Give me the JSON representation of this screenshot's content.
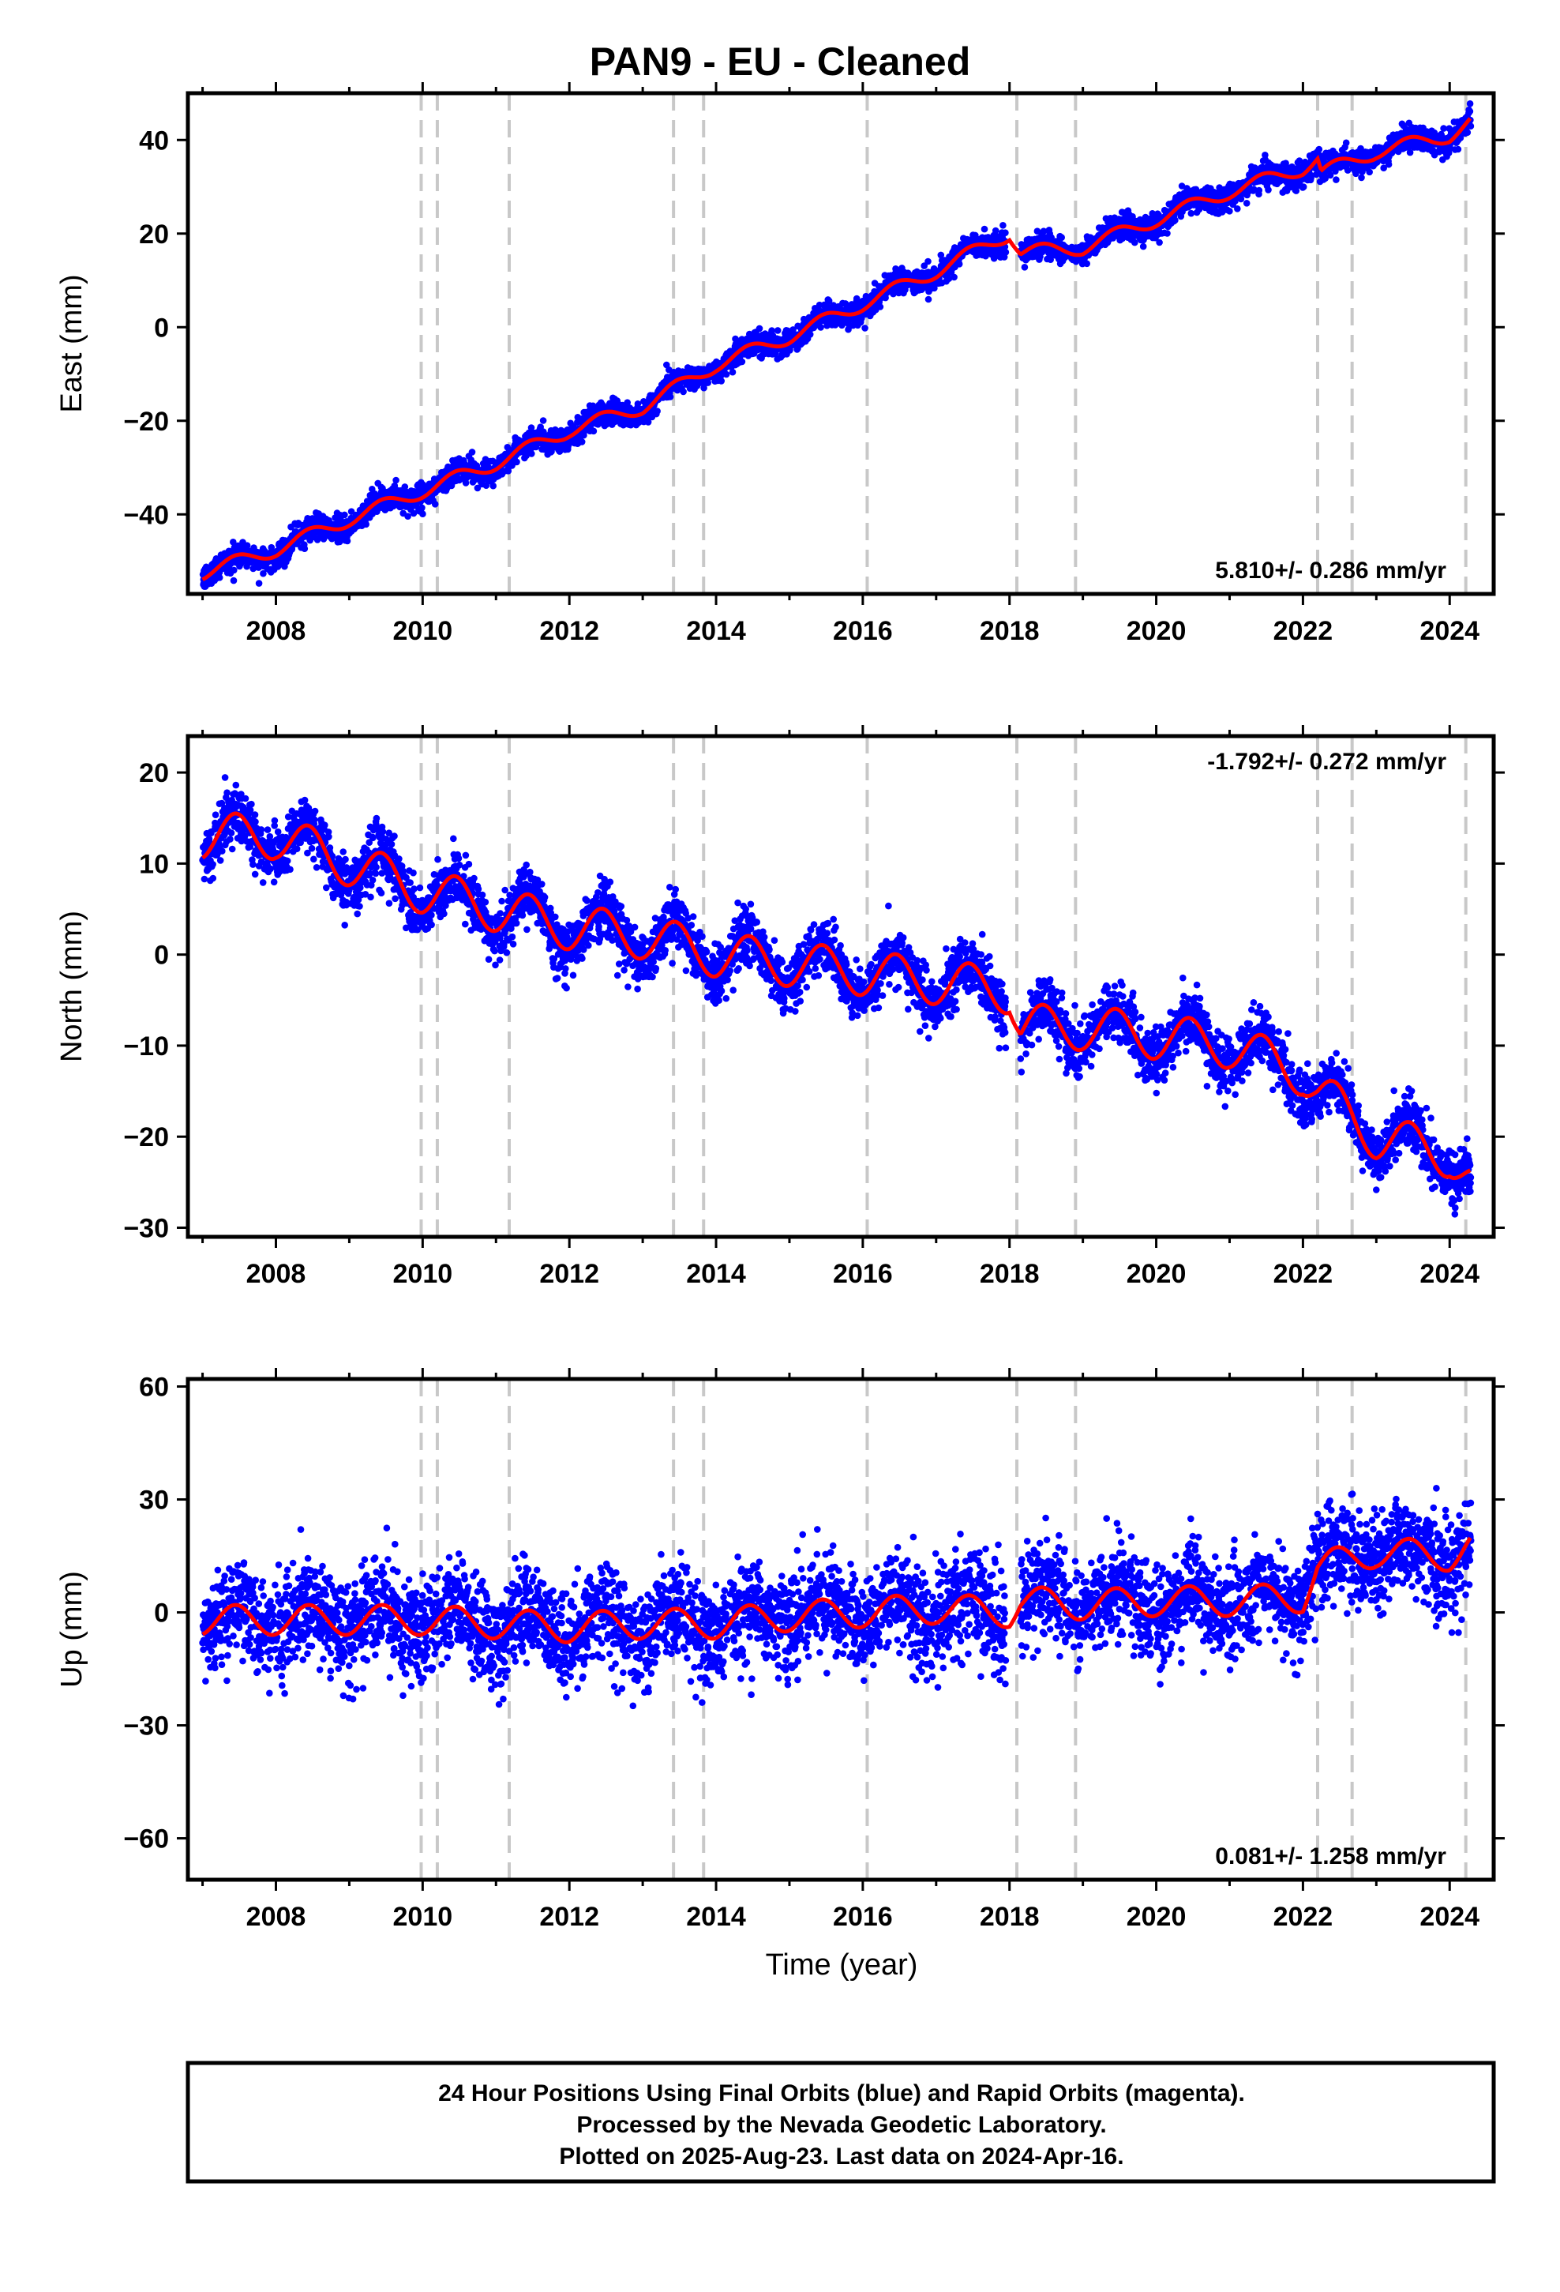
{
  "title": "PAN9  - EU - Cleaned",
  "x_label": "Time (year)",
  "x_ticks": [
    "2008",
    "2010",
    "2012",
    "2014",
    "2016",
    "2018",
    "2020",
    "2022",
    "2024"
  ],
  "caption": {
    "line1": "24 Hour Positions Using Final Orbits (blue) and Rapid Orbits (magenta).",
    "line2": "Processed by the Nevada Geodetic Laboratory.",
    "line3": "Plotted on 2025-Aug-23. Last data on 2024-Apr-16."
  },
  "colors": {
    "points": "#0000ff",
    "model": "#ff0000",
    "steps": "#c8c8c8",
    "frame": "#000000"
  },
  "chart_data": [
    {
      "type": "scatter",
      "panel": "east",
      "ylabel": "East (mm)",
      "rate_label": "5.810+/- 0.286 mm/yr",
      "xlim": [
        2006.8,
        2024.6
      ],
      "ylim": [
        -57,
        50
      ],
      "yticks": [
        -40,
        -20,
        0,
        20,
        40
      ],
      "ytick_labels": [
        "−40",
        "−20",
        "0",
        "20",
        "40"
      ],
      "step_epochs": [
        2009.98,
        2010.2,
        2011.18,
        2013.42,
        2013.83,
        2016.06,
        2018.1,
        2018.9,
        2022.2,
        2022.67,
        2024.22
      ],
      "series": [
        {
          "label": "daily positions",
          "x_range": [
            2007.0,
            2024.29
          ],
          "gaps": [
            [
              2017.95,
              2018.15
            ]
          ],
          "noise_sd": 1.3,
          "anchors": [
            [
              2007.0,
              -52.5
            ],
            [
              2008.0,
              -47.5
            ],
            [
              2009.0,
              -41
            ],
            [
              2010.0,
              -35
            ],
            [
              2011.0,
              -29
            ],
            [
              2012.0,
              -22
            ],
            [
              2013.0,
              -17
            ],
            [
              2014.0,
              -8
            ],
            [
              2015.0,
              -2
            ],
            [
              2016.0,
              5
            ],
            [
              2017.0,
              12
            ],
            [
              2018.0,
              20
            ],
            [
              2018.15,
              16
            ],
            [
              2019.0,
              17
            ],
            [
              2020.0,
              23
            ],
            [
              2021.0,
              29
            ],
            [
              2022.0,
              34
            ],
            [
              2022.2,
              36
            ],
            [
              2022.25,
              33
            ],
            [
              2023.0,
              37.5
            ],
            [
              2024.0,
              41
            ],
            [
              2024.29,
              44
            ]
          ],
          "seasonal_amp": 1.5
        }
      ],
      "model": {
        "label": "model",
        "x_range": [
          2007.0,
          2024.29
        ],
        "anchors": [
          [
            2007.0,
            -52.5
          ],
          [
            2008.0,
            -47.5
          ],
          [
            2009.0,
            -41
          ],
          [
            2010.0,
            -35
          ],
          [
            2011.0,
            -29
          ],
          [
            2012.0,
            -22
          ],
          [
            2013.0,
            -17
          ],
          [
            2014.0,
            -8
          ],
          [
            2015.0,
            -2
          ],
          [
            2016.0,
            5
          ],
          [
            2017.0,
            12
          ],
          [
            2018.0,
            20
          ],
          [
            2018.15,
            16
          ],
          [
            2019.0,
            17
          ],
          [
            2020.0,
            23
          ],
          [
            2021.0,
            29
          ],
          [
            2022.0,
            34
          ],
          [
            2022.2,
            36
          ],
          [
            2022.25,
            33
          ],
          [
            2023.0,
            37.5
          ],
          [
            2024.0,
            41
          ],
          [
            2024.29,
            44
          ]
        ],
        "seasonal_amp": 1.5
      }
    },
    {
      "type": "scatter",
      "panel": "north",
      "ylabel": "North (mm)",
      "rate_label": "-1.792+/- 0.272 mm/yr",
      "xlim": [
        2006.8,
        2024.6
      ],
      "ylim": [
        -31,
        24
      ],
      "yticks": [
        -30,
        -20,
        -10,
        0,
        10,
        20
      ],
      "ytick_labels": [
        "−30",
        "−20",
        "−10",
        "0",
        "10",
        "20"
      ],
      "step_epochs": [
        2009.98,
        2010.2,
        2011.18,
        2013.42,
        2013.83,
        2016.06,
        2018.1,
        2018.9,
        2022.2,
        2022.67,
        2024.22
      ],
      "series": [
        {
          "label": "daily positions",
          "x_range": [
            2007.0,
            2024.29
          ],
          "gaps": [
            [
              2017.95,
              2018.15
            ]
          ],
          "noise_sd": 1.5,
          "anchors": [
            [
              2007.0,
              13
            ],
            [
              2008.0,
              13
            ],
            [
              2009.0,
              10
            ],
            [
              2010.0,
              7
            ],
            [
              2011.0,
              5
            ],
            [
              2012.0,
              3
            ],
            [
              2013.0,
              2
            ],
            [
              2014.0,
              0
            ],
            [
              2015.0,
              -1
            ],
            [
              2016.0,
              -2
            ],
            [
              2017.0,
              -3
            ],
            [
              2018.0,
              -4
            ],
            [
              2018.15,
              -8
            ],
            [
              2019.0,
              -8
            ],
            [
              2020.0,
              -9
            ],
            [
              2021.0,
              -10
            ],
            [
              2022.0,
              -13
            ],
            [
              2022.2,
              -15
            ],
            [
              2023.0,
              -20
            ],
            [
              2024.0,
              -22
            ],
            [
              2024.29,
              -25
            ]
          ],
          "seasonal_amp": 2.5
        }
      ],
      "model": {
        "label": "model",
        "x_range": [
          2007.0,
          2024.29
        ],
        "anchors": [
          [
            2007.0,
            13
          ],
          [
            2008.0,
            13
          ],
          [
            2009.0,
            10
          ],
          [
            2010.0,
            7
          ],
          [
            2011.0,
            5
          ],
          [
            2012.0,
            3
          ],
          [
            2013.0,
            2
          ],
          [
            2014.0,
            0
          ],
          [
            2015.0,
            -1
          ],
          [
            2016.0,
            -2
          ],
          [
            2017.0,
            -3
          ],
          [
            2018.0,
            -4
          ],
          [
            2018.15,
            -8
          ],
          [
            2019.0,
            -8
          ],
          [
            2020.0,
            -9
          ],
          [
            2021.0,
            -10
          ],
          [
            2022.0,
            -13
          ],
          [
            2022.2,
            -15
          ],
          [
            2023.0,
            -20
          ],
          [
            2024.0,
            -22
          ],
          [
            2024.29,
            -25
          ]
        ],
        "seasonal_amp": 2.5
      }
    },
    {
      "type": "scatter",
      "panel": "up",
      "ylabel": "Up (mm)",
      "rate_label": "0.081+/- 1.258 mm/yr",
      "xlim": [
        2006.8,
        2024.6
      ],
      "ylim": [
        -71,
        62
      ],
      "yticks": [
        -60,
        -30,
        0,
        30,
        60
      ],
      "ytick_labels": [
        "−60",
        "−30",
        "0",
        "30",
        "60"
      ],
      "step_epochs": [
        2009.98,
        2010.2,
        2011.18,
        2013.42,
        2013.83,
        2016.06,
        2018.1,
        2018.9,
        2022.2,
        2022.67,
        2024.22
      ],
      "series": [
        {
          "label": "daily positions",
          "x_range": [
            2007.0,
            2024.29
          ],
          "gaps": [
            [
              2017.95,
              2018.15
            ]
          ],
          "noise_sd": 6.5,
          "anchors": [
            [
              2007.0,
              -2
            ],
            [
              2008.0,
              -2
            ],
            [
              2009.0,
              -2
            ],
            [
              2010.0,
              -2
            ],
            [
              2011.0,
              -3
            ],
            [
              2012.0,
              -4
            ],
            [
              2013.0,
              -3
            ],
            [
              2014.0,
              -3
            ],
            [
              2015.0,
              -1
            ],
            [
              2016.0,
              0
            ],
            [
              2017.0,
              1
            ],
            [
              2018.0,
              0
            ],
            [
              2018.15,
              3
            ],
            [
              2019.0,
              2
            ],
            [
              2020.0,
              3
            ],
            [
              2021.0,
              3
            ],
            [
              2022.0,
              4
            ],
            [
              2022.2,
              12
            ],
            [
              2023.0,
              16
            ],
            [
              2024.0,
              15
            ],
            [
              2024.29,
              18
            ]
          ],
          "seasonal_amp": 4
        }
      ],
      "model": {
        "label": "model",
        "x_range": [
          2007.0,
          2024.29
        ],
        "anchors": [
          [
            2007.0,
            -2
          ],
          [
            2008.0,
            -2
          ],
          [
            2009.0,
            -2
          ],
          [
            2010.0,
            -2
          ],
          [
            2011.0,
            -3
          ],
          [
            2012.0,
            -4
          ],
          [
            2013.0,
            -3
          ],
          [
            2014.0,
            -3
          ],
          [
            2015.0,
            -1
          ],
          [
            2016.0,
            0
          ],
          [
            2017.0,
            1
          ],
          [
            2018.0,
            0
          ],
          [
            2018.15,
            3
          ],
          [
            2019.0,
            2
          ],
          [
            2020.0,
            3
          ],
          [
            2021.0,
            3
          ],
          [
            2022.0,
            4
          ],
          [
            2022.2,
            12
          ],
          [
            2023.0,
            16
          ],
          [
            2024.0,
            15
          ],
          [
            2024.29,
            18
          ]
        ],
        "seasonal_amp": 4
      }
    }
  ]
}
